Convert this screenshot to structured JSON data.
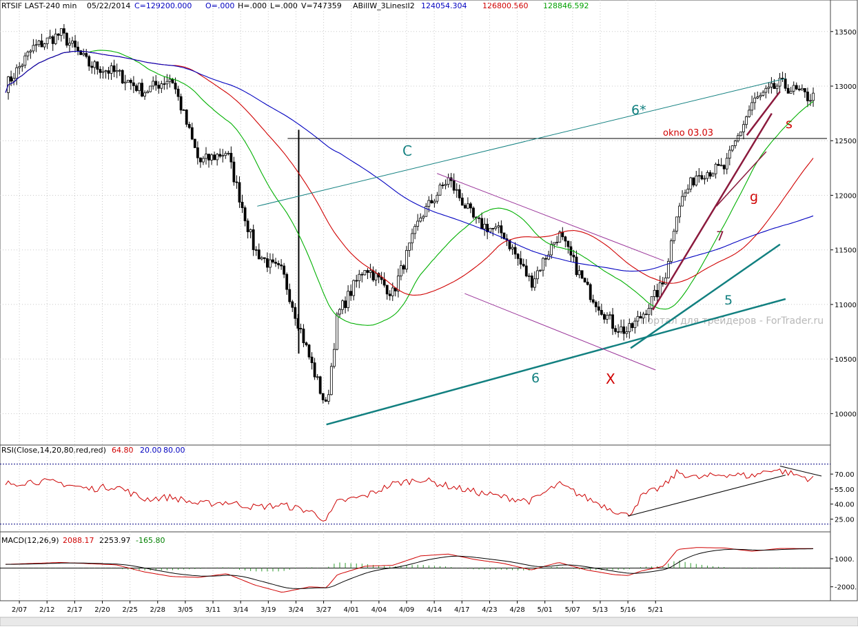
{
  "header": {
    "symbol": "RTSIF LAST-240 min",
    "date": "05/22/2014",
    "close": "C=129200.000",
    "open": "O=.000",
    "high": "H=.000",
    "low": "L=.000",
    "volume": "V=747359",
    "indicator": "ABillW_3LinesII2",
    "ind_v1": "124054.304",
    "ind_v2": "126800.560",
    "ind_v3": "128846.592"
  },
  "rsi_header": {
    "label": "RSI(Close,14,20,80,red,red)",
    "value": "64.80",
    "level_low": "20.00",
    "level_high": "80.00"
  },
  "macd_header": {
    "label": "MACD(12,26,9)",
    "macd": "2088.17",
    "signal": "2253.97",
    "hist": "-165.80"
  },
  "annotations": {
    "C": "C",
    "X": "X",
    "6": "6",
    "6star": "6*",
    "5": "5",
    "7": "7",
    "g": "g",
    "s": "s",
    "okno": "okno 03.03",
    "watermark": "Портал для трейдеров - ForTrader.ru"
  },
  "colors": {
    "price": "#000000",
    "green": "#00b000",
    "red": "#d00000",
    "blue": "#0000c0",
    "teal": "#128080",
    "purple": "#993399",
    "maroon": "#8b1a3d",
    "rsi": "#cc0000",
    "macd_hist": "#2e9a2e",
    "level": "#000080"
  },
  "chart_data": [
    {
      "type": "candlestick",
      "title": "RTSIF LAST-240 min",
      "yticks": [
        13500,
        13000,
        12500,
        12000,
        11500,
        11000,
        10500,
        10000
      ],
      "ylim": [
        9750,
        13650
      ],
      "xticks": [
        "2/07",
        "2/12",
        "2/17",
        "2/20",
        "2/25",
        "2/28",
        "3/05",
        "3/11",
        "3/14",
        "3/19",
        "3/24",
        "3/27",
        "4/01",
        "4/04",
        "4/09",
        "4/14",
        "4/17",
        "4/23",
        "4/28",
        "5/01",
        "5/07",
        "5/13",
        "5/16",
        "5/21"
      ],
      "anchors": [
        [
          0,
          13000
        ],
        [
          1,
          13350
        ],
        [
          2,
          13480
        ],
        [
          3,
          13200
        ],
        [
          4,
          13120
        ],
        [
          5,
          12950
        ],
        [
          6,
          13080
        ],
        [
          7,
          12300
        ],
        [
          8,
          12400
        ],
        [
          9,
          11500
        ],
        [
          9.6,
          11350
        ],
        [
          10,
          11300
        ],
        [
          11,
          10500
        ],
        [
          11.6,
          10050
        ],
        [
          12,
          10900
        ],
        [
          13,
          11350
        ],
        [
          14,
          11100
        ],
        [
          15,
          11800
        ],
        [
          16,
          12150
        ],
        [
          17,
          11750
        ],
        [
          18,
          11650
        ],
        [
          19,
          11200
        ],
        [
          20,
          11650
        ],
        [
          21,
          11150
        ],
        [
          22,
          10800
        ],
        [
          22.5,
          10750
        ],
        [
          23,
          10900
        ],
        [
          23.8,
          11200
        ],
        [
          24.3,
          11900
        ],
        [
          25,
          12200
        ],
        [
          26,
          12250
        ],
        [
          27,
          12850
        ],
        [
          28,
          13020
        ],
        [
          29,
          12900
        ],
        [
          29.2,
          12900
        ]
      ],
      "overlays": [
        {
          "name": "green",
          "color": "#00b000",
          "period": 3
        },
        {
          "name": "red",
          "color": "#d00000",
          "period": 6
        },
        {
          "name": "blue",
          "color": "#0000c0",
          "period": 12
        }
      ],
      "horizontal_line": {
        "label": "okno 03.03",
        "y": 12520
      },
      "trendlines": [
        {
          "name": "6*",
          "from": [
            9.1,
            11900
          ],
          "to": [
            28.2,
            13070
          ]
        },
        {
          "name": "6",
          "from": [
            11.6,
            9900
          ],
          "to": [
            28.2,
            11050
          ]
        },
        {
          "name": "5",
          "from": [
            22.6,
            10600
          ],
          "to": [
            28.0,
            11550
          ]
        },
        {
          "name": "7",
          "from": [
            23.4,
            10950
          ],
          "to": [
            27.7,
            12750
          ]
        },
        {
          "name": "g",
          "from": [
            25.7,
            11900
          ],
          "to": [
            27.5,
            12400
          ]
        },
        {
          "name": "s",
          "from": [
            26.8,
            12550
          ],
          "to": [
            28.0,
            12950
          ]
        },
        {
          "name": "channel-top",
          "from": [
            15.6,
            12200
          ],
          "to": [
            23.8,
            11400
          ]
        },
        {
          "name": "channel-bottom",
          "from": [
            16.6,
            11100
          ],
          "to": [
            23.5,
            10400
          ]
        }
      ]
    },
    {
      "type": "line",
      "title": "RSI(Close,14,20,80,red,red)",
      "yticks": [
        70,
        55,
        40,
        25
      ],
      "ylim": [
        15,
        88
      ],
      "levels": [
        20,
        80
      ],
      "anchors": [
        [
          0,
          60
        ],
        [
          1,
          63
        ],
        [
          2,
          61
        ],
        [
          3,
          55
        ],
        [
          4,
          58
        ],
        [
          5,
          45
        ],
        [
          6,
          47
        ],
        [
          7,
          40
        ],
        [
          8,
          42
        ],
        [
          9,
          37
        ],
        [
          10,
          39
        ],
        [
          11,
          33
        ],
        [
          11.6,
          24
        ],
        [
          12,
          42
        ],
        [
          13,
          48
        ],
        [
          14,
          60
        ],
        [
          15,
          65
        ],
        [
          16,
          58
        ],
        [
          17,
          52
        ],
        [
          18,
          47
        ],
        [
          19,
          43
        ],
        [
          20,
          60
        ],
        [
          21,
          46
        ],
        [
          22,
          34
        ],
        [
          22.5,
          28
        ],
        [
          23,
          48
        ],
        [
          23.8,
          58
        ],
        [
          24.3,
          72
        ],
        [
          25,
          66
        ],
        [
          26,
          70
        ],
        [
          27,
          68
        ],
        [
          27.7,
          75
        ],
        [
          28.2,
          72
        ],
        [
          29,
          66
        ],
        [
          29.2,
          65
        ]
      ],
      "trendlines": [
        {
          "from": [
            22.5,
            28
          ],
          "to": [
            28.2,
            69
          ]
        },
        {
          "from": [
            28,
            78
          ],
          "to": [
            29.5,
            68
          ]
        }
      ]
    },
    {
      "type": "line",
      "title": "MACD(12,26,9)",
      "yticks": [
        1000,
        -2000
      ],
      "ylim": [
        -3200,
        2400
      ],
      "series": [
        {
          "name": "MACD",
          "color": "#d00000"
        },
        {
          "name": "Signal",
          "color": "#000000"
        }
      ],
      "anchors": [
        [
          0,
          400
        ],
        [
          2,
          600
        ],
        [
          4,
          350
        ],
        [
          5,
          -400
        ],
        [
          6,
          -900
        ],
        [
          7,
          -1000
        ],
        [
          8,
          -600
        ],
        [
          9,
          -1800
        ],
        [
          10,
          -2600
        ],
        [
          11,
          -2000
        ],
        [
          11.6,
          -2100
        ],
        [
          12,
          -700
        ],
        [
          13,
          200
        ],
        [
          14,
          300
        ],
        [
          15,
          1300
        ],
        [
          16,
          1500
        ],
        [
          17,
          900
        ],
        [
          18,
          500
        ],
        [
          19,
          -200
        ],
        [
          20,
          600
        ],
        [
          21,
          -200
        ],
        [
          22,
          -700
        ],
        [
          22.5,
          -800
        ],
        [
          23,
          -300
        ],
        [
          23.8,
          200
        ],
        [
          24.3,
          2000
        ],
        [
          25,
          2200
        ],
        [
          26,
          2150
        ],
        [
          27,
          1800
        ],
        [
          28,
          2100
        ],
        [
          29,
          2090
        ],
        [
          29.2,
          2088
        ]
      ]
    }
  ]
}
